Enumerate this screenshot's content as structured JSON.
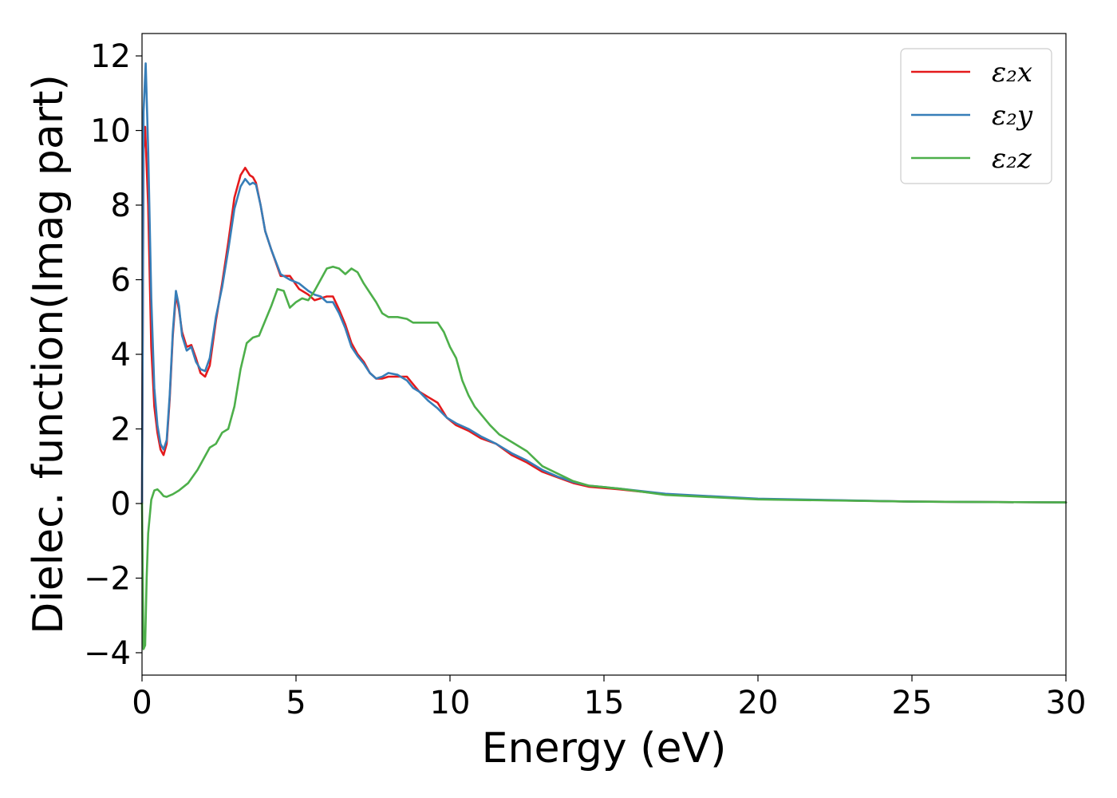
{
  "chart_data": {
    "type": "line",
    "xlabel": "Energy (eV)",
    "ylabel": "Dielec. function(Imag part)",
    "xlim": [
      0,
      30
    ],
    "ylim": [
      -4.6,
      12.6
    ],
    "x_ticks": [
      0,
      5,
      10,
      15,
      20,
      25,
      30
    ],
    "x_tick_labels": [
      "0",
      "5",
      "10",
      "15",
      "20",
      "25",
      "30"
    ],
    "y_ticks": [
      -4,
      -2,
      0,
      2,
      4,
      6,
      8,
      10,
      12
    ],
    "y_tick_labels": [
      "−4",
      "−2",
      "0",
      "2",
      "4",
      "6",
      "8",
      "10",
      "12"
    ],
    "grid": false,
    "legend_position": "top-right",
    "series": [
      {
        "name": "ε₂x",
        "color": "#e41a1c",
        "x": [
          0,
          0.05,
          0.1,
          0.2,
          0.3,
          0.4,
          0.5,
          0.6,
          0.7,
          0.8,
          0.9,
          1.0,
          1.1,
          1.2,
          1.3,
          1.45,
          1.6,
          1.75,
          1.9,
          2.05,
          2.2,
          2.4,
          2.6,
          2.8,
          3.0,
          3.2,
          3.35,
          3.5,
          3.6,
          3.7,
          3.85,
          4.0,
          4.2,
          4.5,
          4.8,
          5.1,
          5.4,
          5.6,
          5.8,
          6.0,
          6.2,
          6.4,
          6.6,
          6.8,
          7.0,
          7.2,
          7.4,
          7.6,
          7.8,
          8.0,
          8.3,
          8.6,
          8.8,
          9.0,
          9.3,
          9.6,
          9.9,
          10.2,
          10.6,
          11.0,
          11.5,
          12.0,
          12.5,
          13.0,
          13.5,
          14.0,
          14.5,
          15.5,
          17.0,
          20.0,
          25.0,
          30.0
        ],
        "y": [
          0,
          9.5,
          10.1,
          8.0,
          4.2,
          2.6,
          1.9,
          1.45,
          1.3,
          1.6,
          2.8,
          4.5,
          5.6,
          5.2,
          4.6,
          4.2,
          4.25,
          3.9,
          3.5,
          3.4,
          3.7,
          4.9,
          5.9,
          7.0,
          8.2,
          8.8,
          9.0,
          8.8,
          8.75,
          8.6,
          8.0,
          7.3,
          6.8,
          6.1,
          6.1,
          5.75,
          5.6,
          5.45,
          5.5,
          5.55,
          5.55,
          5.2,
          4.8,
          4.3,
          4.0,
          3.8,
          3.5,
          3.35,
          3.35,
          3.4,
          3.4,
          3.4,
          3.2,
          3.0,
          2.85,
          2.7,
          2.3,
          2.1,
          1.95,
          1.75,
          1.6,
          1.3,
          1.1,
          0.85,
          0.7,
          0.55,
          0.45,
          0.38,
          0.25,
          0.12,
          0.05,
          0.03
        ]
      },
      {
        "name": "ε₂y",
        "color": "#377eb8",
        "x": [
          0,
          0.05,
          0.12,
          0.2,
          0.3,
          0.4,
          0.5,
          0.6,
          0.7,
          0.8,
          0.9,
          1.0,
          1.1,
          1.2,
          1.3,
          1.45,
          1.6,
          1.75,
          1.9,
          2.05,
          2.2,
          2.4,
          2.6,
          2.8,
          3.0,
          3.2,
          3.35,
          3.5,
          3.6,
          3.7,
          3.85,
          4.0,
          4.2,
          4.5,
          4.8,
          5.1,
          5.4,
          5.6,
          5.8,
          6.0,
          6.2,
          6.4,
          6.6,
          6.8,
          7.0,
          7.2,
          7.4,
          7.6,
          7.8,
          8.0,
          8.3,
          8.6,
          8.8,
          9.0,
          9.3,
          9.6,
          9.9,
          10.2,
          10.6,
          11.0,
          11.5,
          12.0,
          12.5,
          13.0,
          13.5,
          14.0,
          14.5,
          15.5,
          17.0,
          20.0,
          25.0,
          30.0
        ],
        "y": [
          0,
          10.5,
          11.8,
          9.5,
          5.5,
          3.1,
          2.1,
          1.6,
          1.45,
          1.7,
          2.9,
          4.6,
          5.7,
          5.3,
          4.5,
          4.1,
          4.2,
          3.8,
          3.6,
          3.55,
          3.9,
          5.0,
          5.8,
          6.8,
          7.9,
          8.5,
          8.7,
          8.55,
          8.6,
          8.55,
          8.0,
          7.3,
          6.8,
          6.15,
          6.0,
          5.9,
          5.7,
          5.6,
          5.55,
          5.4,
          5.4,
          5.1,
          4.7,
          4.2,
          3.95,
          3.75,
          3.5,
          3.35,
          3.4,
          3.5,
          3.45,
          3.3,
          3.1,
          3.0,
          2.75,
          2.55,
          2.3,
          2.15,
          2.0,
          1.8,
          1.6,
          1.35,
          1.15,
          0.9,
          0.72,
          0.58,
          0.48,
          0.4,
          0.26,
          0.13,
          0.05,
          0.03
        ]
      },
      {
        "name": "ε₂z",
        "color": "#4daf4a",
        "x": [
          0,
          0.05,
          0.1,
          0.15,
          0.2,
          0.3,
          0.4,
          0.5,
          0.6,
          0.7,
          0.8,
          1.0,
          1.2,
          1.5,
          1.8,
          2.0,
          2.2,
          2.4,
          2.6,
          2.8,
          3.0,
          3.2,
          3.4,
          3.6,
          3.8,
          4.0,
          4.2,
          4.4,
          4.6,
          4.8,
          5.0,
          5.2,
          5.4,
          5.6,
          5.8,
          6.0,
          6.2,
          6.4,
          6.6,
          6.8,
          7.0,
          7.2,
          7.4,
          7.6,
          7.8,
          8.0,
          8.3,
          8.6,
          8.8,
          9.0,
          9.3,
          9.6,
          9.8,
          10.0,
          10.2,
          10.4,
          10.6,
          10.8,
          11.0,
          11.3,
          11.6,
          12.0,
          12.5,
          13.0,
          13.5,
          14.0,
          14.5,
          15.5,
          17.0,
          20.0,
          25.0,
          30.0
        ],
        "y": [
          0,
          -3.9,
          -3.8,
          -2.0,
          -0.8,
          0.1,
          0.35,
          0.38,
          0.3,
          0.2,
          0.18,
          0.25,
          0.35,
          0.55,
          0.9,
          1.2,
          1.5,
          1.6,
          1.9,
          2.0,
          2.6,
          3.6,
          4.3,
          4.45,
          4.5,
          4.9,
          5.3,
          5.75,
          5.7,
          5.25,
          5.4,
          5.5,
          5.45,
          5.7,
          6.0,
          6.3,
          6.35,
          6.3,
          6.15,
          6.3,
          6.2,
          5.9,
          5.65,
          5.4,
          5.1,
          5.0,
          5.0,
          4.95,
          4.85,
          4.85,
          4.85,
          4.85,
          4.6,
          4.2,
          3.9,
          3.3,
          2.9,
          2.6,
          2.4,
          2.1,
          1.85,
          1.65,
          1.4,
          1.0,
          0.8,
          0.6,
          0.48,
          0.4,
          0.23,
          0.11,
          0.05,
          0.03
        ]
      }
    ]
  }
}
